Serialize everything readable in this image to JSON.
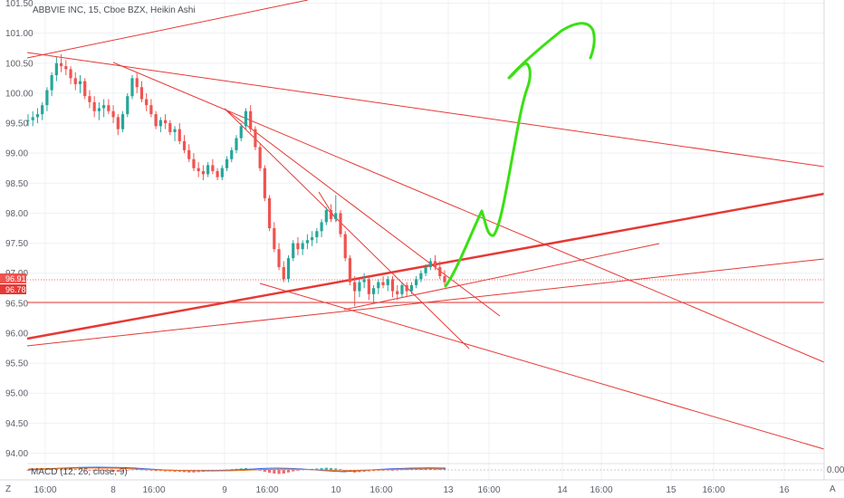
{
  "header": {
    "title": "ABBVIE INC, 15, Cboe BZX, Heikin Ashi",
    "macd_label": "MACD (12, 26, close, 9)",
    "macd_zero": "0.00",
    "corner_left": "Z",
    "corner_right": "A"
  },
  "colors": {
    "up": "#26a69a",
    "down": "#ef5350",
    "drawing": "#e53935",
    "hand": "#39e014",
    "grid": "#eef0f3",
    "text": "#5d606b"
  },
  "price_tags": {
    "upper": "96.91",
    "lower": "96.78"
  },
  "chart_data": {
    "type": "candlestick",
    "title": "ABBVIE INC, 15, Cboe BZX, Heikin Ashi",
    "ylim": [
      93.75,
      101.55
    ],
    "y_ticks": [
      "101.50",
      "101.00",
      "100.50",
      "100.00",
      "99.50",
      "99.00",
      "98.50",
      "98.00",
      "97.50",
      "97.00",
      "96.50",
      "96.00",
      "95.50",
      "95.00",
      "94.50",
      "94.00"
    ],
    "x_ticks": [
      "16:00",
      "8",
      "16:00",
      "9",
      "16:00",
      "10",
      "16:00",
      "13",
      "16:00",
      "14",
      "16:00",
      "15",
      "16:00",
      "16"
    ],
    "grid": true,
    "candles": [
      [
        99.55,
        99.65,
        99.45,
        99.55
      ],
      [
        99.55,
        99.7,
        99.45,
        99.6
      ],
      [
        99.6,
        99.75,
        99.5,
        99.65
      ],
      [
        99.65,
        99.85,
        99.55,
        99.8
      ],
      [
        99.8,
        100.1,
        99.7,
        100.05
      ],
      [
        100.05,
        100.35,
        99.95,
        100.3
      ],
      [
        100.3,
        100.6,
        100.2,
        100.5
      ],
      [
        100.5,
        100.65,
        100.35,
        100.45
      ],
      [
        100.45,
        100.55,
        100.3,
        100.4
      ],
      [
        100.4,
        100.45,
        100.15,
        100.25
      ],
      [
        100.25,
        100.35,
        100.05,
        100.15
      ],
      [
        100.15,
        100.3,
        100.0,
        100.2
      ],
      [
        100.2,
        100.25,
        99.9,
        99.95
      ],
      [
        99.95,
        100.05,
        99.75,
        99.85
      ],
      [
        99.85,
        99.95,
        99.6,
        99.7
      ],
      [
        99.7,
        99.85,
        99.55,
        99.75
      ],
      [
        99.75,
        99.9,
        99.6,
        99.8
      ],
      [
        99.8,
        99.9,
        99.65,
        99.7
      ],
      [
        99.7,
        99.8,
        99.5,
        99.6
      ],
      [
        99.6,
        99.65,
        99.3,
        99.4
      ],
      [
        99.4,
        99.7,
        99.35,
        99.65
      ],
      [
        99.65,
        100.0,
        99.6,
        99.95
      ],
      [
        99.95,
        100.3,
        99.9,
        100.25
      ],
      [
        100.25,
        100.35,
        100.0,
        100.1
      ],
      [
        100.1,
        100.2,
        99.85,
        99.9
      ],
      [
        99.9,
        100.0,
        99.7,
        99.8
      ],
      [
        99.8,
        99.9,
        99.6,
        99.65
      ],
      [
        99.65,
        99.7,
        99.4,
        99.45
      ],
      [
        99.45,
        99.6,
        99.35,
        99.55
      ],
      [
        99.55,
        99.65,
        99.4,
        99.5
      ],
      [
        99.5,
        99.55,
        99.3,
        99.35
      ],
      [
        99.35,
        99.45,
        99.2,
        99.4
      ],
      [
        99.4,
        99.5,
        99.15,
        99.2
      ],
      [
        99.2,
        99.3,
        99.0,
        99.05
      ],
      [
        99.05,
        99.15,
        98.85,
        98.9
      ],
      [
        98.9,
        99.0,
        98.7,
        98.75
      ],
      [
        98.75,
        98.85,
        98.6,
        98.7
      ],
      [
        98.7,
        98.8,
        98.55,
        98.65
      ],
      [
        98.65,
        98.85,
        98.6,
        98.8
      ],
      [
        98.8,
        98.9,
        98.65,
        98.7
      ],
      [
        98.7,
        98.75,
        98.55,
        98.6
      ],
      [
        98.6,
        98.8,
        98.55,
        98.75
      ],
      [
        98.75,
        98.95,
        98.7,
        98.9
      ],
      [
        98.9,
        99.1,
        98.85,
        99.05
      ],
      [
        99.05,
        99.3,
        99.0,
        99.25
      ],
      [
        99.25,
        99.5,
        99.2,
        99.45
      ],
      [
        99.45,
        99.75,
        99.4,
        99.7
      ],
      [
        99.7,
        99.8,
        99.35,
        99.4
      ],
      [
        99.4,
        99.45,
        99.05,
        99.1
      ],
      [
        99.1,
        99.15,
        98.7,
        98.75
      ],
      [
        98.75,
        98.8,
        98.2,
        98.25
      ],
      [
        98.25,
        98.3,
        97.7,
        97.75
      ],
      [
        97.75,
        97.85,
        97.35,
        97.4
      ],
      [
        97.4,
        97.5,
        97.05,
        97.1
      ],
      [
        97.1,
        97.2,
        96.85,
        96.9
      ],
      [
        96.9,
        97.3,
        96.85,
        97.25
      ],
      [
        97.25,
        97.55,
        97.2,
        97.5
      ],
      [
        97.5,
        97.6,
        97.3,
        97.4
      ],
      [
        97.4,
        97.55,
        97.3,
        97.5
      ],
      [
        97.5,
        97.65,
        97.4,
        97.55
      ],
      [
        97.55,
        97.7,
        97.45,
        97.6
      ],
      [
        97.6,
        97.75,
        97.5,
        97.7
      ],
      [
        97.7,
        97.9,
        97.6,
        97.85
      ],
      [
        97.85,
        98.1,
        97.8,
        98.05
      ],
      [
        98.05,
        98.15,
        97.85,
        97.9
      ],
      [
        97.9,
        98.3,
        97.85,
        98.0
      ],
      [
        98.0,
        98.05,
        97.6,
        97.65
      ],
      [
        97.65,
        97.7,
        97.2,
        97.25
      ],
      [
        97.25,
        97.3,
        96.8,
        96.85
      ],
      [
        96.85,
        96.95,
        96.45,
        96.7
      ],
      [
        96.7,
        96.9,
        96.6,
        96.85
      ],
      [
        96.85,
        97.0,
        96.75,
        96.9
      ],
      [
        96.9,
        96.95,
        96.55,
        96.65
      ],
      [
        96.65,
        96.8,
        96.5,
        96.75
      ],
      [
        96.75,
        96.9,
        96.65,
        96.85
      ],
      [
        96.85,
        96.95,
        96.75,
        96.8
      ],
      [
        96.8,
        96.95,
        96.7,
        96.9
      ],
      [
        96.9,
        96.95,
        96.6,
        96.7
      ],
      [
        96.7,
        96.8,
        96.55,
        96.65
      ],
      [
        96.65,
        96.85,
        96.6,
        96.8
      ],
      [
        96.8,
        96.85,
        96.6,
        96.7
      ],
      [
        96.7,
        96.85,
        96.65,
        96.8
      ],
      [
        96.8,
        96.95,
        96.75,
        96.9
      ],
      [
        96.9,
        97.05,
        96.85,
        97.0
      ],
      [
        97.0,
        97.15,
        96.95,
        97.1
      ],
      [
        97.1,
        97.25,
        97.05,
        97.2
      ],
      [
        97.2,
        97.3,
        97.05,
        97.1
      ],
      [
        97.1,
        97.2,
        96.9,
        96.95
      ],
      [
        96.95,
        97.05,
        96.8,
        96.85
      ]
    ],
    "macd_histogram": [
      -0.02,
      -0.01,
      0.01,
      0.02,
      0.03,
      0.04,
      0.05,
      0.05,
      0.04,
      0.03,
      0.02,
      0.01,
      -0.01,
      -0.02,
      -0.03,
      -0.02,
      -0.02,
      -0.03,
      -0.04,
      -0.05,
      -0.03,
      -0.01,
      0.01,
      0.02,
      0.01,
      -0.01,
      -0.02,
      -0.03,
      -0.03,
      -0.04,
      -0.04,
      -0.05,
      -0.05,
      -0.06,
      -0.07,
      -0.07,
      -0.06,
      -0.05,
      -0.04,
      -0.04,
      -0.03,
      -0.02,
      0.01,
      0.02,
      0.03,
      0.04,
      0.05,
      0.03,
      0.01,
      -0.02,
      -0.05,
      -0.08,
      -0.1,
      -0.11,
      -0.1,
      -0.07,
      -0.04,
      -0.02,
      0.01,
      0.02,
      0.03,
      0.04,
      0.05,
      0.06,
      0.05,
      0.04,
      0.02,
      -0.02,
      -0.05,
      -0.07,
      -0.06,
      -0.05,
      -0.04,
      -0.03,
      -0.02,
      -0.02,
      -0.01,
      -0.02,
      -0.01,
      0.01,
      0.01,
      0.02,
      0.03,
      0.04,
      0.05,
      0.05,
      0.04,
      0.02,
      0.01
    ]
  }
}
